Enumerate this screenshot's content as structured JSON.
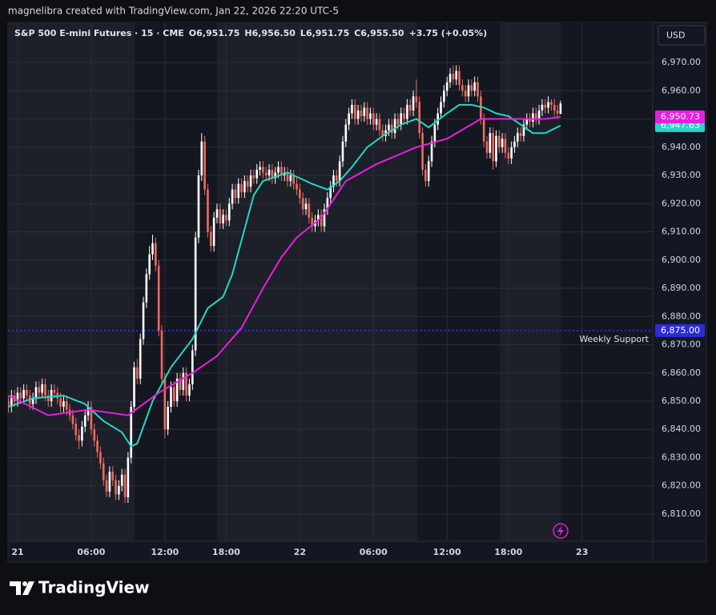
{
  "header": {
    "credit": "magnelibra created with TradingView.com, Jan 22, 2026 22:20 UTC-5",
    "brand": "TradingView"
  },
  "currency": "USD",
  "legend": {
    "symbol": "S&P 500 E-mini Futures · 15 · CME",
    "items": [
      {
        "key": "O",
        "value": "6,951.75"
      },
      {
        "key": "H",
        "value": "6,956.50"
      },
      {
        "key": "L",
        "value": "6,951.75"
      },
      {
        "key": "C",
        "value": "6,955.50"
      }
    ],
    "change": "+3.75 (+0.05%)"
  },
  "chart_data": {
    "type": "candlestick",
    "up_color": "#ffffff",
    "down_color": "#ef6a5f",
    "grid": true,
    "xlim": [
      -0.13,
      210.05
    ],
    "ylim": [
      6800.35,
      6984.2
    ],
    "xticks": [
      {
        "value": 3,
        "label": "21"
      },
      {
        "value": 27,
        "label": "06:00"
      },
      {
        "value": 51,
        "label": "12:00"
      },
      {
        "value": 71,
        "label": "18:00"
      },
      {
        "value": 95,
        "label": "22"
      },
      {
        "value": 119,
        "label": "06:00"
      },
      {
        "value": 143,
        "label": "12:00"
      },
      {
        "value": 163,
        "label": "18:00"
      },
      {
        "value": 187,
        "label": "23"
      }
    ],
    "yticks": [
      {
        "value": 6810,
        "label": "6,810.00"
      },
      {
        "value": 6820,
        "label": "6,820.00"
      },
      {
        "value": 6830,
        "label": "6,830.00"
      },
      {
        "value": 6840,
        "label": "6,840.00"
      },
      {
        "value": 6850,
        "label": "6,850.00"
      },
      {
        "value": 6860,
        "label": "6,860.00"
      },
      {
        "value": 6870,
        "label": "6,870.00"
      },
      {
        "value": 6880,
        "label": "6,880.00"
      },
      {
        "value": 6890,
        "label": "6,890.00"
      },
      {
        "value": 6900,
        "label": "6,900.00"
      },
      {
        "value": 6910,
        "label": "6,910.00"
      },
      {
        "value": 6920,
        "label": "6,920.00"
      },
      {
        "value": 6930,
        "label": "6,930.00"
      },
      {
        "value": 6940,
        "label": "6,940.00"
      },
      {
        "value": 6950,
        "label": "6,950.00"
      },
      {
        "value": 6960,
        "label": "6,960.00"
      },
      {
        "value": 6970,
        "label": "6,970.00"
      }
    ],
    "open": [
      6850,
      6848,
      6852,
      6850,
      6853,
      6851,
      6854,
      6852,
      6849,
      6851,
      6855,
      6853,
      6856,
      6852,
      6850,
      6854,
      6853,
      6851,
      6848,
      6850,
      6847,
      6845,
      6842,
      6838,
      6836,
      6841,
      6845,
      6848,
      6840,
      6836,
      6832,
      6828,
      6822,
      6818,
      6825,
      6822,
      6817,
      6820,
      6824,
      6816,
      6830,
      6848,
      6862,
      6858,
      6872,
      6885,
      6895,
      6902,
      6906,
      6898,
      6875,
      6858,
      6840,
      6848,
      6855,
      6850,
      6858,
      6854,
      6860,
      6852,
      6856,
      6868,
      6908,
      6930,
      6942,
      6925,
      6910,
      6905,
      6915,
      6918,
      6913,
      6916,
      6914,
      6920,
      6925,
      6922,
      6927,
      6924,
      6928,
      6926,
      6930,
      6929,
      6932,
      6933,
      6931,
      6930,
      6932,
      6929,
      6931,
      6933,
      6930,
      6931,
      6928,
      6930,
      6927,
      6925,
      6922,
      6918,
      6920,
      6915,
      6912,
      6914,
      6916,
      6912,
      6918,
      6922,
      6926,
      6930,
      6928,
      6935,
      6942,
      6948,
      6952,
      6955,
      6950,
      6953,
      6951,
      6954,
      6950,
      6952,
      6948,
      6950,
      6946,
      6944,
      6946,
      6948,
      6945,
      6950,
      6948,
      6952,
      6950,
      6955,
      6953,
      6958,
      6956,
      6945,
      6932,
      6928,
      6935,
      6942,
      6948,
      6952,
      6956,
      6960,
      6963,
      6966,
      6964,
      6967,
      6962,
      6960,
      6958,
      6962,
      6960,
      6963,
      6958,
      6950,
      6942,
      6938,
      6945,
      6935,
      6944,
      6940,
      6943,
      6938,
      6936,
      6940,
      6942,
      6945,
      6944,
      6948,
      6950,
      6949,
      6952,
      6950,
      6953,
      6955,
      6954,
      6956,
      6955,
      6953,
      6951.75
    ],
    "high": [
      6852,
      6854,
      6854,
      6855,
      6855,
      6856,
      6856,
      6854,
      6853,
      6857,
      6857,
      6858,
      6858,
      6854,
      6856,
      6856,
      6855,
      6853,
      6852,
      6852,
      6849,
      6847,
      6844,
      6840,
      6843,
      6847,
      6850,
      6850,
      6842,
      6838,
      6834,
      6830,
      6824,
      6827,
      6827,
      6824,
      6822,
      6826,
      6826,
      6832,
      6850,
      6864,
      6865,
      6874,
      6887,
      6897,
      6905,
      6909,
      6908,
      6900,
      6877,
      6860,
      6850,
      6857,
      6857,
      6860,
      6860,
      6862,
      6862,
      6858,
      6870,
      6910,
      6932,
      6945,
      6944,
      6927,
      6912,
      6917,
      6920,
      6920,
      6918,
      6918,
      6922,
      6927,
      6927,
      6929,
      6929,
      6930,
      6930,
      6932,
      6932,
      6934,
      6935,
      6935,
      6933,
      6934,
      6934,
      6933,
      6935,
      6935,
      6933,
      6933,
      6932,
      6932,
      6929,
      6927,
      6924,
      6922,
      6922,
      6917,
      6916,
      6918,
      6918,
      6920,
      6924,
      6928,
      6932,
      6932,
      6937,
      6944,
      6950,
      6954,
      6957,
      6957,
      6955,
      6955,
      6956,
      6956,
      6954,
      6954,
      6952,
      6952,
      6948,
      6948,
      6950,
      6950,
      6952,
      6952,
      6954,
      6954,
      6957,
      6957,
      6960,
      6964,
      6958,
      6947,
      6934,
      6937,
      6944,
      6950,
      6954,
      6958,
      6962,
      6965,
      6968,
      6969,
      6969,
      6969,
      6964,
      6962,
      6964,
      6964,
      6965,
      6965,
      6960,
      6952,
      6944,
      6947,
      6947,
      6946,
      6946,
      6945,
      6945,
      6940,
      6942,
      6944,
      6947,
      6947,
      6950,
      6952,
      6952,
      6954,
      6954,
      6955,
      6957,
      6957,
      6958,
      6957,
      6957,
      6955,
      6956.5
    ],
    "low": [
      6846,
      6846,
      6848,
      6848,
      6849,
      6849,
      6850,
      6847,
      6847,
      6849,
      6851,
      6851,
      6850,
      6848,
      6848,
      6851,
      6849,
      6846,
      6846,
      6845,
      6843,
      6840,
      6836,
      6833,
      6834,
      6839,
      6843,
      6838,
      6834,
      6830,
      6826,
      6820,
      6816,
      6816,
      6820,
      6815,
      6815,
      6818,
      6814,
      6814,
      6828,
      6846,
      6856,
      6856,
      6870,
      6883,
      6893,
      6900,
      6896,
      6873,
      6856,
      6837,
      6838,
      6846,
      6848,
      6848,
      6852,
      6852,
      6850,
      6850,
      6854,
      6866,
      6906,
      6928,
      6923,
      6908,
      6903,
      6903,
      6913,
      6911,
      6911,
      6912,
      6912,
      6918,
      6920,
      6920,
      6922,
      6922,
      6924,
      6924,
      6927,
      6927,
      6930,
      6929,
      6928,
      6928,
      6927,
      6927,
      6929,
      6928,
      6928,
      6926,
      6926,
      6925,
      6923,
      6920,
      6916,
      6916,
      6913,
      6910,
      6910,
      6912,
      6910,
      6910,
      6916,
      6920,
      6924,
      6926,
      6926,
      6933,
      6940,
      6946,
      6950,
      6948,
      6948,
      6949,
      6949,
      6948,
      6948,
      6946,
      6946,
      6944,
      6942,
      6942,
      6944,
      6943,
      6943,
      6946,
      6946,
      6948,
      6948,
      6951,
      6951,
      6954,
      6943,
      6930,
      6926,
      6926,
      6933,
      6940,
      6946,
      6950,
      6954,
      6958,
      6961,
      6962,
      6962,
      6960,
      6958,
      6956,
      6956,
      6958,
      6958,
      6956,
      6948,
      6940,
      6936,
      6936,
      6932,
      6933,
      6938,
      6938,
      6936,
      6934,
      6934,
      6938,
      6940,
      6942,
      6942,
      6946,
      6947,
      6947,
      6948,
      6948,
      6951,
      6952,
      6952,
      6953,
      6951,
      6950,
      6951.75
    ],
    "close": [
      6848,
      6852,
      6850,
      6853,
      6851,
      6854,
      6852,
      6849,
      6851,
      6855,
      6853,
      6856,
      6852,
      6850,
      6854,
      6853,
      6851,
      6848,
      6850,
      6847,
      6845,
      6842,
      6838,
      6836,
      6841,
      6845,
      6848,
      6840,
      6836,
      6832,
      6828,
      6822,
      6818,
      6825,
      6822,
      6817,
      6820,
      6824,
      6816,
      6830,
      6848,
      6862,
      6858,
      6872,
      6885,
      6895,
      6902,
      6906,
      6898,
      6875,
      6858,
      6840,
      6848,
      6855,
      6850,
      6858,
      6854,
      6860,
      6852,
      6856,
      6868,
      6908,
      6930,
      6942,
      6925,
      6910,
      6905,
      6915,
      6918,
      6913,
      6916,
      6914,
      6920,
      6925,
      6922,
      6927,
      6924,
      6928,
      6926,
      6930,
      6929,
      6932,
      6933,
      6931,
      6930,
      6932,
      6929,
      6931,
      6933,
      6930,
      6931,
      6928,
      6930,
      6927,
      6925,
      6922,
      6918,
      6920,
      6915,
      6912,
      6914,
      6916,
      6912,
      6918,
      6922,
      6926,
      6930,
      6928,
      6935,
      6942,
      6948,
      6952,
      6955,
      6950,
      6953,
      6951,
      6954,
      6950,
      6952,
      6948,
      6950,
      6946,
      6944,
      6946,
      6948,
      6945,
      6950,
      6948,
      6952,
      6950,
      6955,
      6953,
      6958,
      6956,
      6945,
      6932,
      6928,
      6935,
      6942,
      6948,
      6952,
      6956,
      6960,
      6963,
      6966,
      6964,
      6967,
      6962,
      6960,
      6958,
      6962,
      6960,
      6963,
      6958,
      6950,
      6942,
      6938,
      6945,
      6935,
      6944,
      6940,
      6943,
      6938,
      6936,
      6940,
      6942,
      6945,
      6944,
      6948,
      6950,
      6949,
      6952,
      6950,
      6953,
      6955,
      6954,
      6956,
      6955,
      6953,
      6952,
      6955.5
    ],
    "series": [
      {
        "color": "#26d7c4",
        "x": [
          0,
          8,
          18,
          25,
          31,
          37,
          40,
          42,
          47,
          53,
          60,
          65,
          70,
          73,
          76,
          80,
          83,
          91,
          99,
          104,
          108,
          112,
          117,
          122,
          128,
          133,
          137,
          143,
          147,
          151,
          155,
          159,
          163,
          167,
          171,
          175,
          180
        ],
        "values": [
          6848,
          6851,
          6852,
          6849,
          6843,
          6839,
          6834,
          6835,
          6850,
          6862,
          6872,
          6883,
          6887,
          6895,
          6907,
          6923,
          6928,
          6931,
          6927,
          6925,
          6928,
          6933,
          6940,
          6944,
          6948,
          6950,
          6947,
          6952,
          6955,
          6955,
          6954,
          6952,
          6951,
          6948,
          6945,
          6945,
          6947.63
        ],
        "badge": {
          "value": 6947.63,
          "label": "6,947.63"
        }
      },
      {
        "color": "#e91ee0",
        "x": [
          0,
          13,
          26,
          39,
          49,
          60,
          68,
          76,
          83,
          89,
          94,
          102,
          110,
          120,
          133,
          143,
          154,
          164,
          175,
          180
        ],
        "values": [
          6852,
          6845,
          6847,
          6845,
          6853,
          6860,
          6866,
          6876,
          6890,
          6901,
          6908,
          6915,
          6928,
          6934,
          6940,
          6943,
          6950,
          6950,
          6950,
          6950.73
        ],
        "badge": {
          "value": 6950.73,
          "label": "6,950.73"
        }
      }
    ],
    "hline": {
      "value": 6875,
      "label": "6,875.00",
      "text": "Weekly Support",
      "color": "#2b2bd9"
    }
  }
}
